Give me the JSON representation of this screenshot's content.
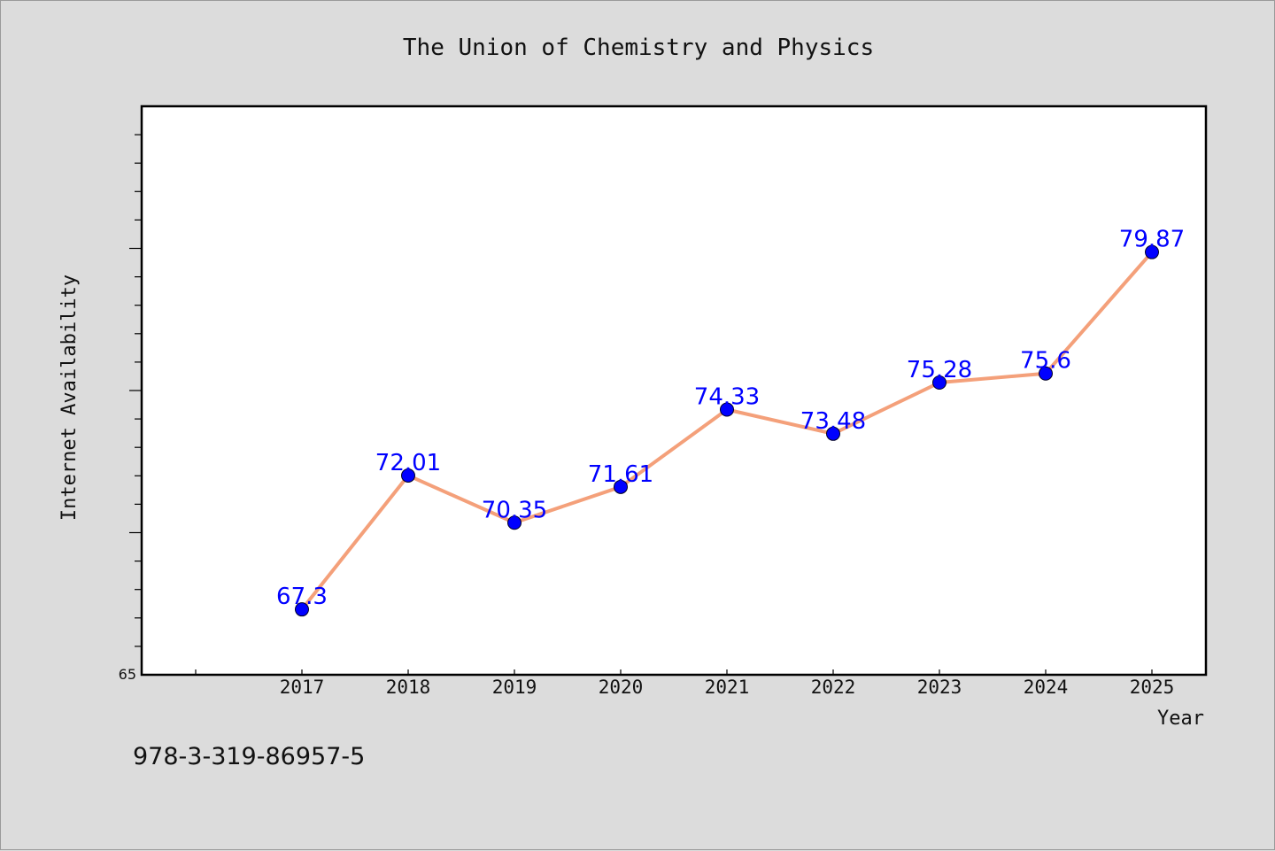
{
  "footer_code": "978-3-319-86957-5",
  "colors": {
    "background": "#dcdcdc",
    "plot_area": "#ffffff",
    "line": "#f4a07a",
    "marker": "#0000ff",
    "data_label": "#0000ff"
  },
  "chart_data": {
    "type": "line",
    "title": "The Union of Chemistry and Physics",
    "xlabel": "Year",
    "ylabel": "Internet Availability",
    "x": [
      "2017",
      "2018",
      "2019",
      "2020",
      "2021",
      "2022",
      "2023",
      "2024",
      "2025"
    ],
    "series": [
      {
        "values": [
          67.3,
          72.01,
          70.35,
          71.61,
          74.33,
          73.48,
          75.28,
          75.6,
          79.87
        ],
        "labels": [
          "67.3",
          "72.01",
          "70.35",
          "71.61",
          "74.33",
          "73.48",
          "75.28",
          "75.6",
          "79.87"
        ]
      }
    ],
    "ylim": [
      65,
      85
    ],
    "y_tick_labels": [
      "65"
    ],
    "grid": false,
    "legend": "none"
  }
}
